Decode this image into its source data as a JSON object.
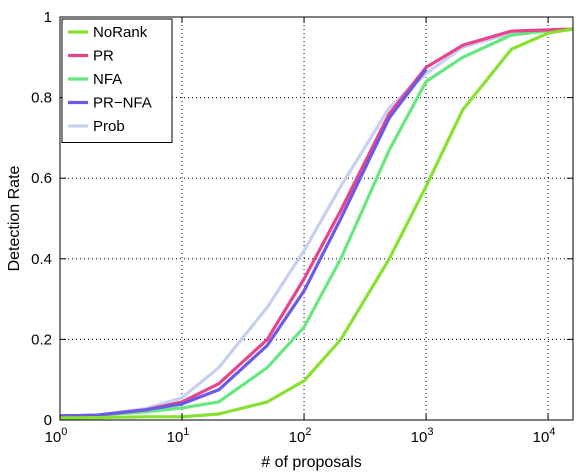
{
  "chart_data": {
    "type": "line",
    "title": "",
    "xlabel": "# of proposals",
    "ylabel": "Detection Rate",
    "xscale": "log",
    "xlim": [
      1,
      16000
    ],
    "ylim": [
      0,
      1
    ],
    "grid": true,
    "legend_position": "top-left",
    "x_ticks": [
      {
        "value": 1,
        "base": "10",
        "exp": "0"
      },
      {
        "value": 10,
        "base": "10",
        "exp": "1"
      },
      {
        "value": 100,
        "base": "10",
        "exp": "2"
      },
      {
        "value": 1000,
        "base": "10",
        "exp": "3"
      },
      {
        "value": 10000,
        "base": "10",
        "exp": "4"
      }
    ],
    "y_ticks": [
      {
        "value": 0,
        "label": "0"
      },
      {
        "value": 0.2,
        "label": "0.2"
      },
      {
        "value": 0.4,
        "label": "0.4"
      },
      {
        "value": 0.6,
        "label": "0.6"
      },
      {
        "value": 0.8,
        "label": "0.8"
      },
      {
        "value": 1,
        "label": "1"
      }
    ],
    "series": [
      {
        "name": "NoRank",
        "color": "#88e030",
        "points": [
          [
            1,
            0.005
          ],
          [
            2,
            0.006
          ],
          [
            5,
            0.008
          ],
          [
            10,
            0.008
          ],
          [
            20,
            0.015
          ],
          [
            50,
            0.045
          ],
          [
            100,
            0.097
          ],
          [
            200,
            0.2
          ],
          [
            500,
            0.4
          ],
          [
            1000,
            0.58
          ],
          [
            2000,
            0.77
          ],
          [
            5000,
            0.92
          ],
          [
            10000,
            0.96
          ],
          [
            16000,
            0.97
          ]
        ]
      },
      {
        "name": "PR",
        "color": "#e8448a",
        "points": [
          [
            1,
            0.01
          ],
          [
            2,
            0.012
          ],
          [
            5,
            0.025
          ],
          [
            10,
            0.045
          ],
          [
            20,
            0.09
          ],
          [
            50,
            0.2
          ],
          [
            100,
            0.35
          ],
          [
            200,
            0.52
          ],
          [
            500,
            0.76
          ],
          [
            1000,
            0.875
          ],
          [
            2000,
            0.93
          ],
          [
            5000,
            0.965
          ],
          [
            10000,
            0.968
          ],
          [
            16000,
            0.97
          ]
        ]
      },
      {
        "name": "NFA",
        "color": "#66e880",
        "points": [
          [
            1,
            0.01
          ],
          [
            2,
            0.012
          ],
          [
            5,
            0.02
          ],
          [
            10,
            0.03
          ],
          [
            20,
            0.045
          ],
          [
            50,
            0.13
          ],
          [
            100,
            0.23
          ],
          [
            200,
            0.4
          ],
          [
            500,
            0.67
          ],
          [
            1000,
            0.84
          ],
          [
            2000,
            0.9
          ],
          [
            5000,
            0.955
          ],
          [
            10000,
            0.966
          ],
          [
            16000,
            0.97
          ]
        ]
      },
      {
        "name": "PR−NFA",
        "color": "#6a5ae8",
        "points": [
          [
            1,
            0.01
          ],
          [
            2,
            0.012
          ],
          [
            5,
            0.025
          ],
          [
            10,
            0.04
          ],
          [
            20,
            0.075
          ],
          [
            50,
            0.185
          ],
          [
            100,
            0.32
          ],
          [
            200,
            0.5
          ],
          [
            500,
            0.75
          ],
          [
            1000,
            0.87
          ]
        ]
      },
      {
        "name": "Prob",
        "color": "#c8d0f0",
        "points": [
          [
            1,
            0.01
          ],
          [
            2,
            0.012
          ],
          [
            5,
            0.028
          ],
          [
            10,
            0.055
          ],
          [
            20,
            0.13
          ],
          [
            50,
            0.28
          ],
          [
            100,
            0.42
          ],
          [
            200,
            0.58
          ],
          [
            500,
            0.775
          ],
          [
            1000,
            0.86
          ],
          [
            2000,
            0.925
          ],
          [
            5000,
            0.96
          ],
          [
            10000,
            0.968
          ],
          [
            16000,
            0.97
          ]
        ]
      }
    ]
  }
}
